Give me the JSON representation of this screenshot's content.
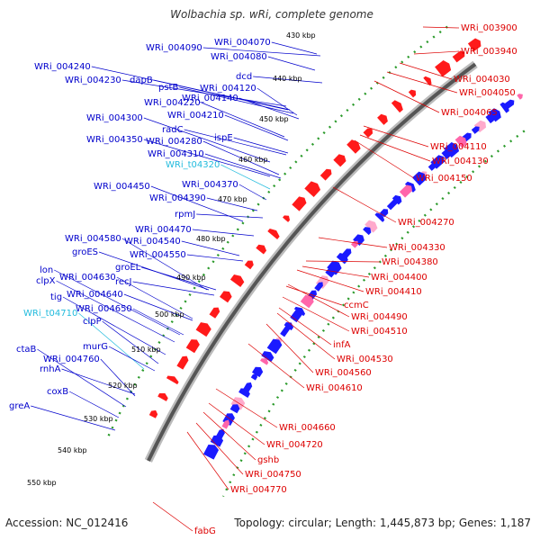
{
  "title": "Wolbachia sp. wRi, complete genome",
  "footer": {
    "accession": "Accession: NC_012416",
    "topology": "Topology: circular; Length: 1,445,873 bp; Genes: 1,187"
  },
  "colors": {
    "forward": "#0000cc",
    "reverse": "#dd0000",
    "rna": "#22bbdd",
    "backbone": "#888888",
    "dots": "#2a9a2a"
  },
  "ticks": [
    "430 kbp",
    "440 kbp",
    "450 kbp",
    "460 kbp",
    "470 kbp",
    "480 kbp",
    "490 kbp",
    "500 kbp",
    "510 kbp",
    "520 kbp",
    "530 kbp",
    "540 kbp",
    "550 kbp"
  ],
  "left_labels": [
    {
      "text": "WRi_004070",
      "strand": "forward"
    },
    {
      "text": "WRi_004090",
      "strand": "forward"
    },
    {
      "text": "WRi_004080",
      "strand": "forward"
    },
    {
      "text": "WRi_004240",
      "strand": "forward"
    },
    {
      "text": "dcd",
      "strand": "forward"
    },
    {
      "text": "WRi_004230",
      "strand": "forward"
    },
    {
      "text": "dapB",
      "strand": "forward"
    },
    {
      "text": "pstB",
      "strand": "forward"
    },
    {
      "text": "WRi_004120",
      "strand": "forward"
    },
    {
      "text": "WRi_004140",
      "strand": "forward"
    },
    {
      "text": "WRi_004220",
      "strand": "forward"
    },
    {
      "text": "WRi_004210",
      "strand": "forward"
    },
    {
      "text": "WRi_004300",
      "strand": "forward"
    },
    {
      "text": "radC",
      "strand": "forward"
    },
    {
      "text": "ispE",
      "strand": "forward"
    },
    {
      "text": "WRi_004350",
      "strand": "forward"
    },
    {
      "text": "WRi_004280",
      "strand": "forward"
    },
    {
      "text": "WRi_004310",
      "strand": "forward"
    },
    {
      "text": "WRi_t04320",
      "strand": "rna"
    },
    {
      "text": "WRi_004450",
      "strand": "forward"
    },
    {
      "text": "WRi_004370",
      "strand": "forward"
    },
    {
      "text": "WRi_004390",
      "strand": "forward"
    },
    {
      "text": "rpmJ",
      "strand": "forward"
    },
    {
      "text": "WRi_004470",
      "strand": "forward"
    },
    {
      "text": "WRi_004580",
      "strand": "forward"
    },
    {
      "text": "WRi_004540",
      "strand": "forward"
    },
    {
      "text": "groES",
      "strand": "forward"
    },
    {
      "text": "WRi_004550",
      "strand": "forward"
    },
    {
      "text": "lon",
      "strand": "forward"
    },
    {
      "text": "groEL",
      "strand": "forward"
    },
    {
      "text": "clpX",
      "strand": "forward"
    },
    {
      "text": "WRi_004630",
      "strand": "forward"
    },
    {
      "text": "recJ",
      "strand": "forward"
    },
    {
      "text": "tig",
      "strand": "forward"
    },
    {
      "text": "WRi_004640",
      "strand": "forward"
    },
    {
      "text": "WRi_004650",
      "strand": "forward"
    },
    {
      "text": "WRi_t04710",
      "strand": "rna"
    },
    {
      "text": "clpP",
      "strand": "forward"
    },
    {
      "text": "murG",
      "strand": "forward"
    },
    {
      "text": "ctaB",
      "strand": "forward"
    },
    {
      "text": "WRi_004760",
      "strand": "forward"
    },
    {
      "text": "rnhA",
      "strand": "forward"
    },
    {
      "text": "coxB",
      "strand": "forward"
    },
    {
      "text": "greA",
      "strand": "forward"
    }
  ],
  "right_labels": [
    {
      "text": "WRi_003900",
      "strand": "reverse"
    },
    {
      "text": "WRi_003940",
      "strand": "reverse"
    },
    {
      "text": "WRi_004030",
      "strand": "reverse"
    },
    {
      "text": "WRi_004050",
      "strand": "reverse"
    },
    {
      "text": "WRi_004065",
      "strand": "reverse"
    },
    {
      "text": "WRi_004110",
      "strand": "reverse"
    },
    {
      "text": "WRi_004130",
      "strand": "reverse"
    },
    {
      "text": "WRi_004150",
      "strand": "reverse"
    },
    {
      "text": "WRi_004270",
      "strand": "reverse"
    },
    {
      "text": "WRi_004330",
      "strand": "reverse"
    },
    {
      "text": "WRi_004380",
      "strand": "reverse"
    },
    {
      "text": "WRi_004400",
      "strand": "reverse"
    },
    {
      "text": "WRi_004410",
      "strand": "reverse"
    },
    {
      "text": "ccmC",
      "strand": "reverse"
    },
    {
      "text": "WRi_004490",
      "strand": "reverse"
    },
    {
      "text": "WRi_004510",
      "strand": "reverse"
    },
    {
      "text": "infA",
      "strand": "reverse"
    },
    {
      "text": "WRi_004530",
      "strand": "reverse"
    },
    {
      "text": "WRi_004560",
      "strand": "reverse"
    },
    {
      "text": "WRi_004610",
      "strand": "reverse"
    },
    {
      "text": "WRi_004660",
      "strand": "reverse"
    },
    {
      "text": "WRi_004720",
      "strand": "reverse"
    },
    {
      "text": "gshb",
      "strand": "reverse"
    },
    {
      "text": "WRi_004750",
      "strand": "reverse"
    },
    {
      "text": "WRi_004770",
      "strand": "reverse"
    },
    {
      "text": "fabG",
      "strand": "reverse"
    }
  ]
}
